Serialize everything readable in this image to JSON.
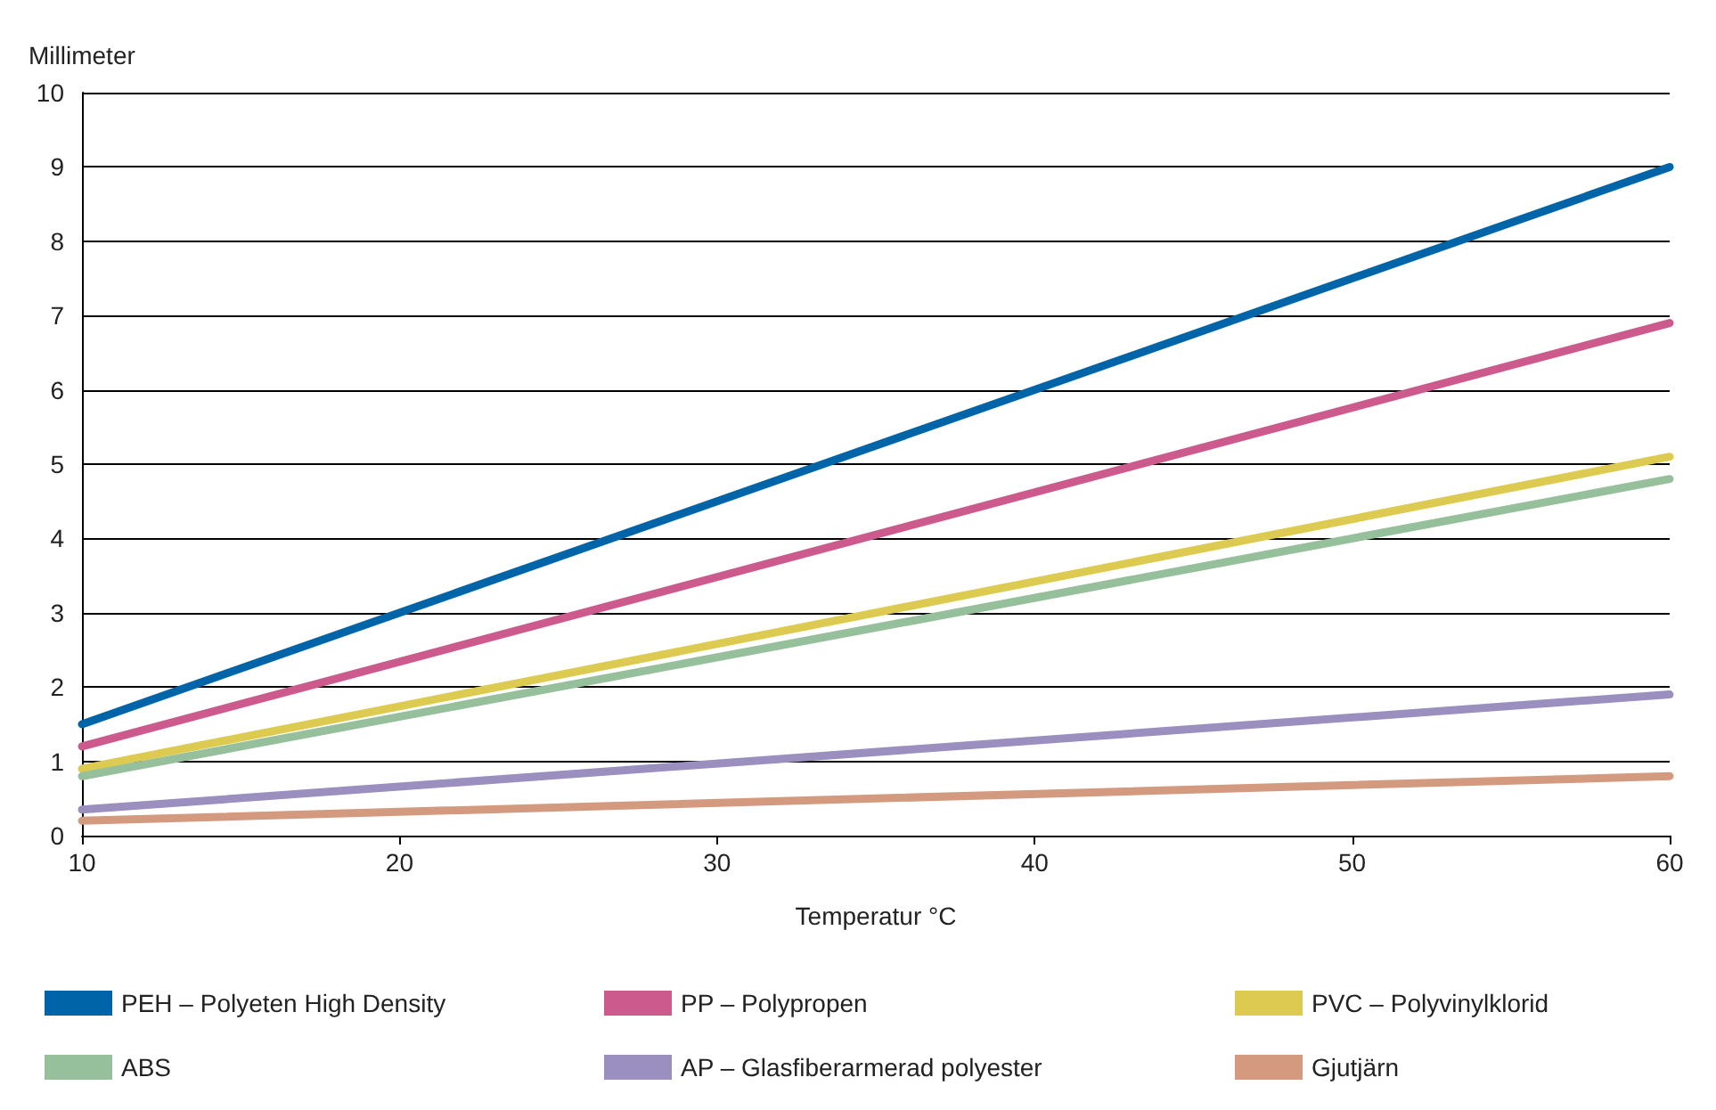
{
  "chart_data": {
    "type": "line",
    "xlabel": "Temperatur °C",
    "ylabel": "Millimeter",
    "x": [
      10,
      60
    ],
    "series": [
      {
        "name": "PEH – Polyeten High Density",
        "color": "#0064a8",
        "values": [
          1.5,
          9.0
        ]
      },
      {
        "name": "PP – Polypropen",
        "color": "#cc5a8c",
        "values": [
          1.2,
          6.9
        ]
      },
      {
        "name": "PVC – Polyvinylklorid",
        "color": "#dccb50",
        "values": [
          0.9,
          5.1
        ]
      },
      {
        "name": "ABS",
        "color": "#96c09b",
        "values": [
          0.8,
          4.8
        ]
      },
      {
        "name": "AP – Glasfiberarmerad polyester",
        "color": "#9a8fbf",
        "values": [
          0.35,
          1.9
        ]
      },
      {
        "name": "Gjutjärn",
        "color": "#d49a80",
        "values": [
          0.2,
          0.8
        ]
      }
    ],
    "xlim": [
      10,
      60
    ],
    "xticks": [
      10,
      20,
      30,
      40,
      50,
      60
    ],
    "ylim": [
      0,
      10
    ],
    "yticks": [
      0,
      1,
      2,
      3,
      4,
      5,
      6,
      7,
      8,
      9,
      10
    ],
    "grid": "y",
    "legend": "bottom",
    "marker": "none",
    "line_style": "solid"
  }
}
